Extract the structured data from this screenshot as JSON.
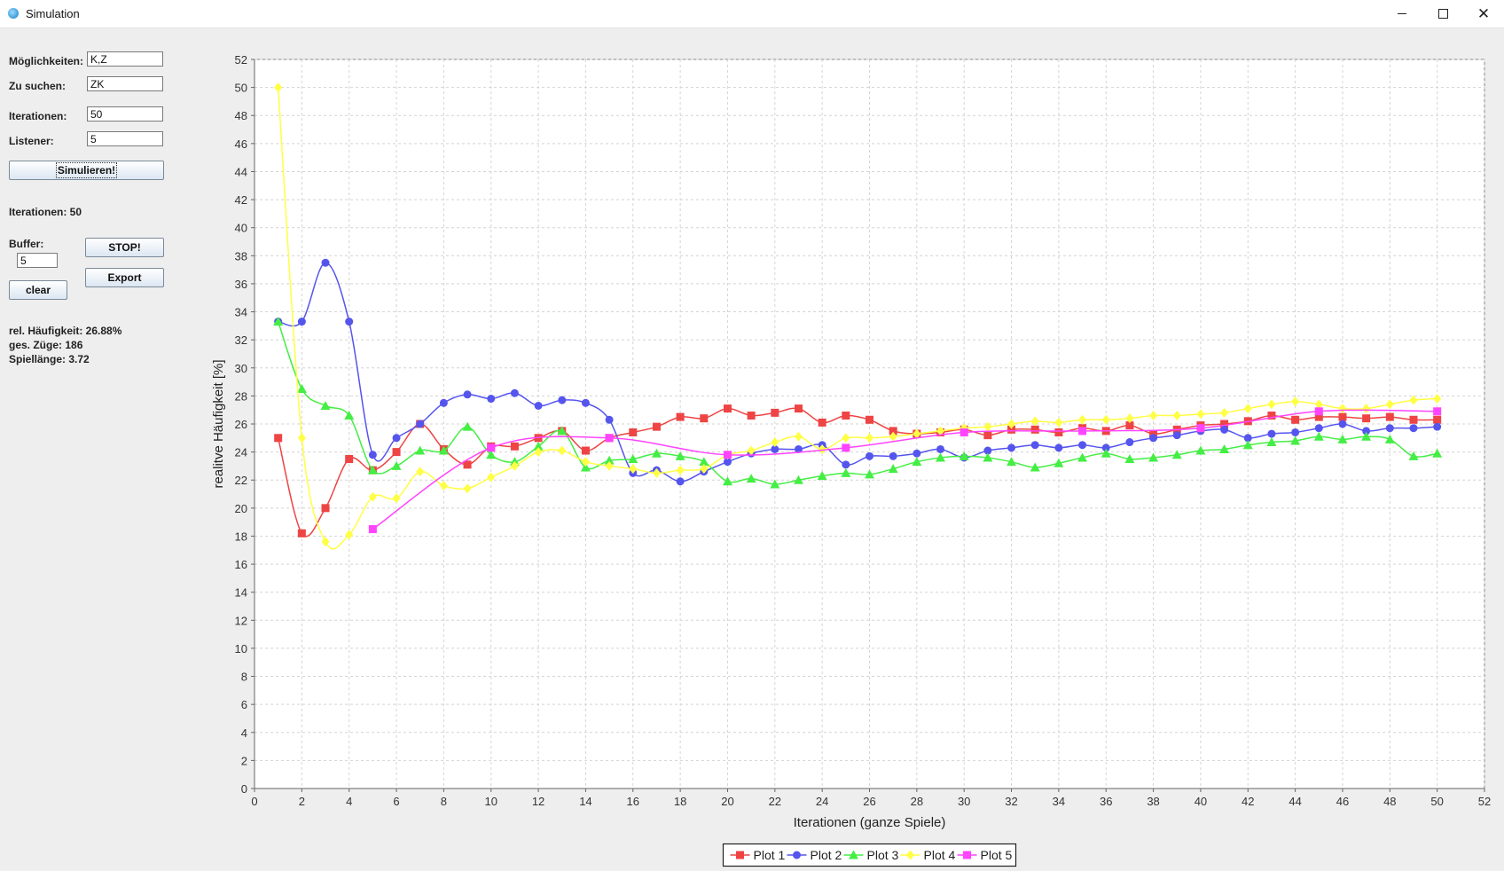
{
  "window": {
    "title": "Simulation",
    "close_glyph": "✕"
  },
  "form": {
    "moeglichkeiten_label": "Möglichkeiten:",
    "moeglichkeiten_value": "K,Z",
    "zu_suchen_label": "Zu suchen:",
    "zu_suchen_value": "ZK",
    "iterationen_label": "Iterationen:",
    "iterationen_value": "50",
    "listener_label": "Listener:",
    "listener_value": "5",
    "simulate_label": "Simulieren!",
    "iterations_status": "Iterationen: 50",
    "buffer_label": "Buffer:",
    "buffer_value": "5",
    "stop_label": "STOP!",
    "export_label": "Export",
    "clear_label": "clear"
  },
  "stats": {
    "rel_freq": "rel. Häufigkeit: 26.88%",
    "moves": "ges. Züge: 186",
    "game_length": "Spiellänge: 3.72"
  },
  "chart_data": {
    "type": "line",
    "xlabel": "Iterationen (ganze Spiele)",
    "ylabel": "realitve Häufigkeit [%]",
    "xlim": [
      0,
      52
    ],
    "ylim": [
      0,
      52
    ],
    "xticks": [
      0,
      2,
      4,
      6,
      8,
      10,
      12,
      14,
      16,
      18,
      20,
      22,
      24,
      26,
      28,
      30,
      32,
      34,
      36,
      38,
      40,
      42,
      44,
      46,
      48,
      50,
      52
    ],
    "yticks": [
      0,
      2,
      4,
      6,
      8,
      10,
      12,
      14,
      16,
      18,
      20,
      22,
      24,
      26,
      28,
      30,
      32,
      34,
      36,
      38,
      40,
      42,
      44,
      46,
      48,
      50,
      52
    ],
    "grid": true,
    "legend": "bottom-center",
    "series": [
      {
        "name": "Plot 1",
        "color": "#ee4444",
        "marker": "square",
        "x": [
          1,
          2,
          3,
          4,
          5,
          6,
          7,
          8,
          9,
          10,
          11,
          12,
          13,
          14,
          15,
          16,
          17,
          18,
          19,
          20,
          21,
          22,
          23,
          24,
          25,
          26,
          27,
          28,
          29,
          30,
          31,
          32,
          33,
          34,
          35,
          36,
          37,
          38,
          39,
          40,
          41,
          42,
          43,
          44,
          45,
          46,
          47,
          48,
          49,
          50
        ],
        "values": [
          25.0,
          18.2,
          20.0,
          23.5,
          22.7,
          24.0,
          26.0,
          24.2,
          23.1,
          24.4,
          24.4,
          25.0,
          25.5,
          24.1,
          25.0,
          25.4,
          25.8,
          26.5,
          26.4,
          27.1,
          26.6,
          26.8,
          27.1,
          26.1,
          26.6,
          26.3,
          25.5,
          25.3,
          25.4,
          25.6,
          25.2,
          25.6,
          25.6,
          25.4,
          25.7,
          25.5,
          25.9,
          25.3,
          25.6,
          25.9,
          26.0,
          26.2,
          26.6,
          26.3,
          26.5,
          26.5,
          26.4,
          26.5,
          26.3,
          26.3
        ]
      },
      {
        "name": "Plot 2",
        "color": "#5555ee",
        "marker": "circle",
        "x": [
          1,
          2,
          3,
          4,
          5,
          6,
          7,
          8,
          9,
          10,
          11,
          12,
          13,
          14,
          15,
          16,
          17,
          18,
          19,
          20,
          21,
          22,
          23,
          24,
          25,
          26,
          27,
          28,
          29,
          30,
          31,
          32,
          33,
          34,
          35,
          36,
          37,
          38,
          39,
          40,
          41,
          42,
          43,
          44,
          45,
          46,
          47,
          48,
          49,
          50
        ],
        "values": [
          33.3,
          33.3,
          37.5,
          33.3,
          23.8,
          25.0,
          26.0,
          27.5,
          28.1,
          27.8,
          28.2,
          27.3,
          27.7,
          27.5,
          26.3,
          22.5,
          22.7,
          21.9,
          22.6,
          23.3,
          23.9,
          24.2,
          24.2,
          24.5,
          23.1,
          23.7,
          23.7,
          23.9,
          24.2,
          23.6,
          24.1,
          24.3,
          24.5,
          24.3,
          24.5,
          24.3,
          24.7,
          25.0,
          25.2,
          25.5,
          25.6,
          25.0,
          25.3,
          25.4,
          25.7,
          26.0,
          25.5,
          25.7,
          25.7,
          25.8
        ]
      },
      {
        "name": "Plot 3",
        "color": "#44ee44",
        "marker": "triangle",
        "x": [
          1,
          2,
          3,
          4,
          5,
          6,
          7,
          8,
          9,
          10,
          11,
          12,
          13,
          14,
          15,
          16,
          17,
          18,
          19,
          20,
          21,
          22,
          23,
          24,
          25,
          26,
          27,
          28,
          29,
          30,
          31,
          32,
          33,
          34,
          35,
          36,
          37,
          38,
          39,
          40,
          41,
          42,
          43,
          44,
          45,
          46,
          47,
          48,
          49,
          50
        ],
        "values": [
          33.3,
          28.5,
          27.3,
          26.6,
          22.7,
          23.0,
          24.1,
          24.1,
          25.8,
          23.8,
          23.3,
          24.4,
          25.5,
          22.9,
          23.4,
          23.5,
          23.9,
          23.7,
          23.3,
          21.9,
          22.1,
          21.7,
          22.0,
          22.3,
          22.5,
          22.4,
          22.8,
          23.3,
          23.6,
          23.7,
          23.6,
          23.3,
          22.9,
          23.2,
          23.6,
          23.9,
          23.5,
          23.6,
          23.8,
          24.1,
          24.2,
          24.5,
          24.7,
          24.8,
          25.1,
          24.9,
          25.1,
          24.9,
          23.7,
          23.9
        ]
      },
      {
        "name": "Plot 4",
        "color": "#ffff44",
        "marker": "diamond",
        "x": [
          1,
          2,
          3,
          4,
          5,
          6,
          7,
          8,
          9,
          10,
          11,
          12,
          13,
          14,
          15,
          16,
          17,
          18,
          19,
          20,
          21,
          22,
          23,
          24,
          25,
          26,
          27,
          28,
          29,
          30,
          31,
          32,
          33,
          34,
          35,
          36,
          37,
          38,
          39,
          40,
          41,
          42,
          43,
          44,
          45,
          46,
          47,
          48,
          49,
          50
        ],
        "values": [
          50.0,
          25.0,
          17.6,
          18.1,
          20.8,
          20.7,
          22.6,
          21.6,
          21.4,
          22.2,
          23.0,
          24.0,
          24.1,
          23.3,
          23.0,
          22.8,
          22.5,
          22.7,
          22.8,
          23.8,
          24.1,
          24.7,
          25.1,
          24.2,
          25.0,
          25.0,
          25.1,
          25.3,
          25.5,
          25.7,
          25.8,
          26.0,
          26.2,
          26.1,
          26.3,
          26.3,
          26.4,
          26.6,
          26.6,
          26.7,
          26.8,
          27.1,
          27.4,
          27.6,
          27.4,
          27.1,
          27.1,
          27.4,
          27.7,
          27.8
        ]
      },
      {
        "name": "Plot 5",
        "color": "#ff44ff",
        "marker": "square",
        "x": [
          5,
          10,
          15,
          20,
          25,
          30,
          35,
          40,
          45,
          50
        ],
        "values": [
          18.5,
          24.3,
          25.0,
          23.8,
          24.3,
          25.4,
          25.5,
          25.7,
          26.9,
          26.9
        ]
      }
    ]
  }
}
